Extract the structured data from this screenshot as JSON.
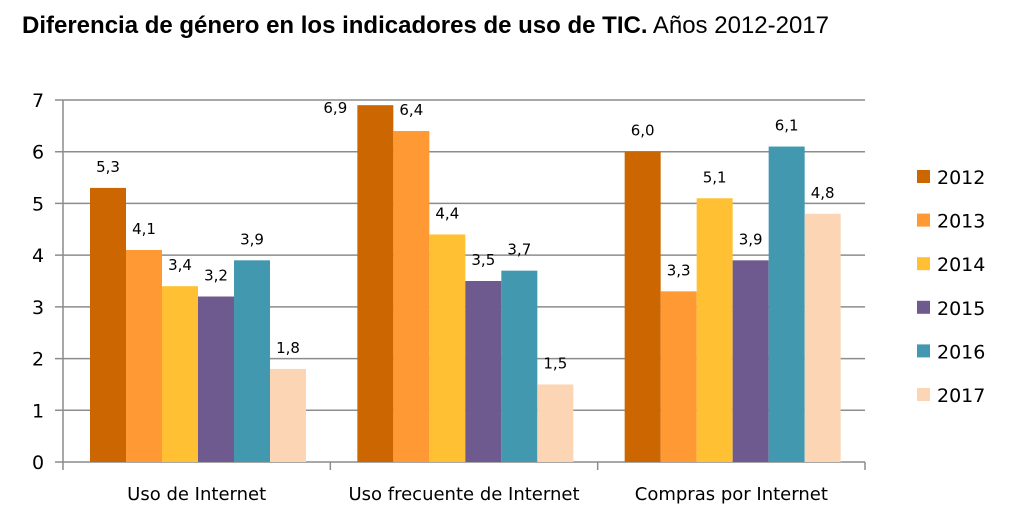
{
  "chart_data": {
    "type": "bar",
    "title": "Diferencia de género en los indicadores de uso de TIC.",
    "subtitle": "Años 2012-2017",
    "xlabel": "",
    "ylabel": "",
    "ylim": [
      0,
      7
    ],
    "yticks": [
      0,
      1,
      2,
      3,
      4,
      5,
      6,
      7
    ],
    "grid": true,
    "legend_position": "right",
    "categories": [
      "Uso de Internet",
      "Uso frecuente de Internet",
      "Compras por Internet"
    ],
    "series": [
      {
        "name": "2012",
        "color": "#CC6600",
        "values": [
          5.3,
          6.9,
          6.0
        ],
        "labels": [
          "5,3",
          "6,9",
          "6,0"
        ]
      },
      {
        "name": "2013",
        "color": "#FF9933",
        "values": [
          4.1,
          6.4,
          3.3
        ],
        "labels": [
          "4,1",
          "6,4",
          "3,3"
        ]
      },
      {
        "name": "2014",
        "color": "#FFC133",
        "values": [
          3.4,
          4.4,
          5.1
        ],
        "labels": [
          "3,4",
          "4,4",
          "5,1"
        ]
      },
      {
        "name": "2015",
        "color": "#6E5A8E",
        "values": [
          3.2,
          3.5,
          3.9
        ],
        "labels": [
          "3,2",
          "3,5",
          "3,9"
        ]
      },
      {
        "name": "2016",
        "color": "#4198AF",
        "values": [
          3.9,
          3.7,
          6.1
        ],
        "labels": [
          "3,9",
          "3,7",
          "6,1"
        ]
      },
      {
        "name": "2017",
        "color": "#FCD5B5",
        "values": [
          1.8,
          1.5,
          4.8
        ],
        "labels": [
          "1,8",
          "1,5",
          "4,8"
        ]
      }
    ]
  }
}
